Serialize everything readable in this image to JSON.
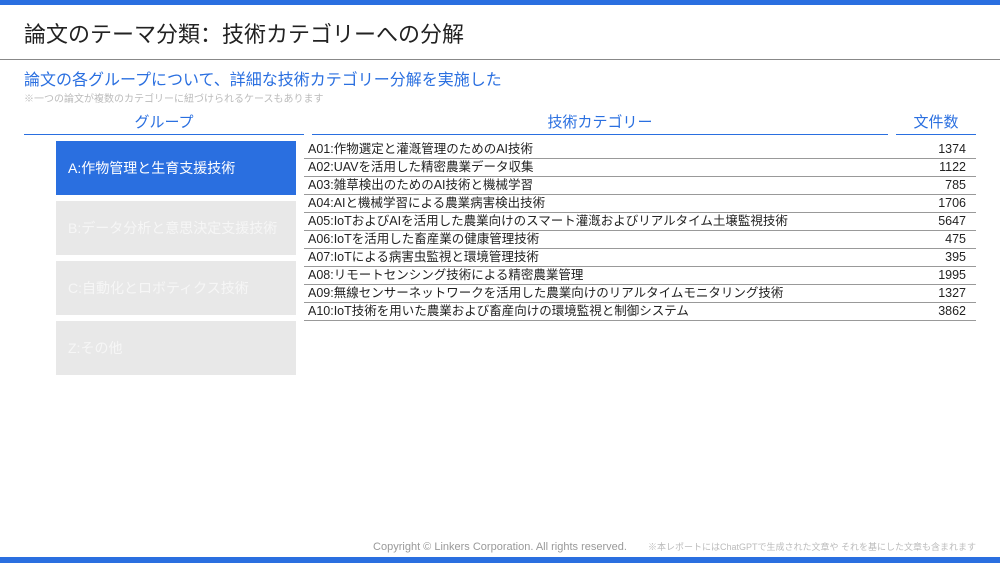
{
  "colors": {
    "accent": "#2a6fe0",
    "inactive_bg": "#e8e8e8",
    "inactive_fg": "#f6f6f6"
  },
  "title": "論文のテーマ分類：技術カテゴリーへの分解",
  "subtitle": "論文の各グループについて、詳細な技術カテゴリー分解を実施した",
  "note": "※一つの論文が複数のカテゴリーに紐づけられるケースもあります",
  "headers": {
    "group": "グループ",
    "category": "技術カテゴリー",
    "count": "文件数"
  },
  "groups": [
    {
      "label": "A:作物管理と生育支援技術",
      "active": true
    },
    {
      "label": "B:データ分析と意思決定支援技術",
      "active": false
    },
    {
      "label": "C:自動化とロボティクス技術",
      "active": false
    },
    {
      "label": "Z:その他",
      "active": false
    }
  ],
  "rows": [
    {
      "cat": "A01:作物選定と灌漑管理のためのAI技術",
      "count": "1374"
    },
    {
      "cat": "A02:UAVを活用した精密農業データ収集",
      "count": "1122"
    },
    {
      "cat": "A03:雑草検出のためのAI技術と機械学習",
      "count": "785"
    },
    {
      "cat": "A04:AIと機械学習による農業病害検出技術",
      "count": "1706"
    },
    {
      "cat": "A05:IoTおよびAIを活用した農業向けのスマート灌漑およびリアルタイム土壌監視技術",
      "count": "5647"
    },
    {
      "cat": "A06:IoTを活用した畜産業の健康管理技術",
      "count": "475"
    },
    {
      "cat": "A07:IoTによる病害虫監視と環境管理技術",
      "count": "395"
    },
    {
      "cat": "A08:リモートセンシング技術による精密農業管理",
      "count": "1995"
    },
    {
      "cat": "A09:無線センサーネットワークを活用した農業向けのリアルタイムモニタリング技術",
      "count": "1327"
    },
    {
      "cat": "A10:IoT技術を用いた農業および畜産向けの環境監視と制御システム",
      "count": "3862"
    }
  ],
  "copyright": "Copyright © Linkers Corporation. All rights reserved.",
  "footnote": "※本レポートにはChatGPTで生成された文章や それを基にした文章も含まれます"
}
